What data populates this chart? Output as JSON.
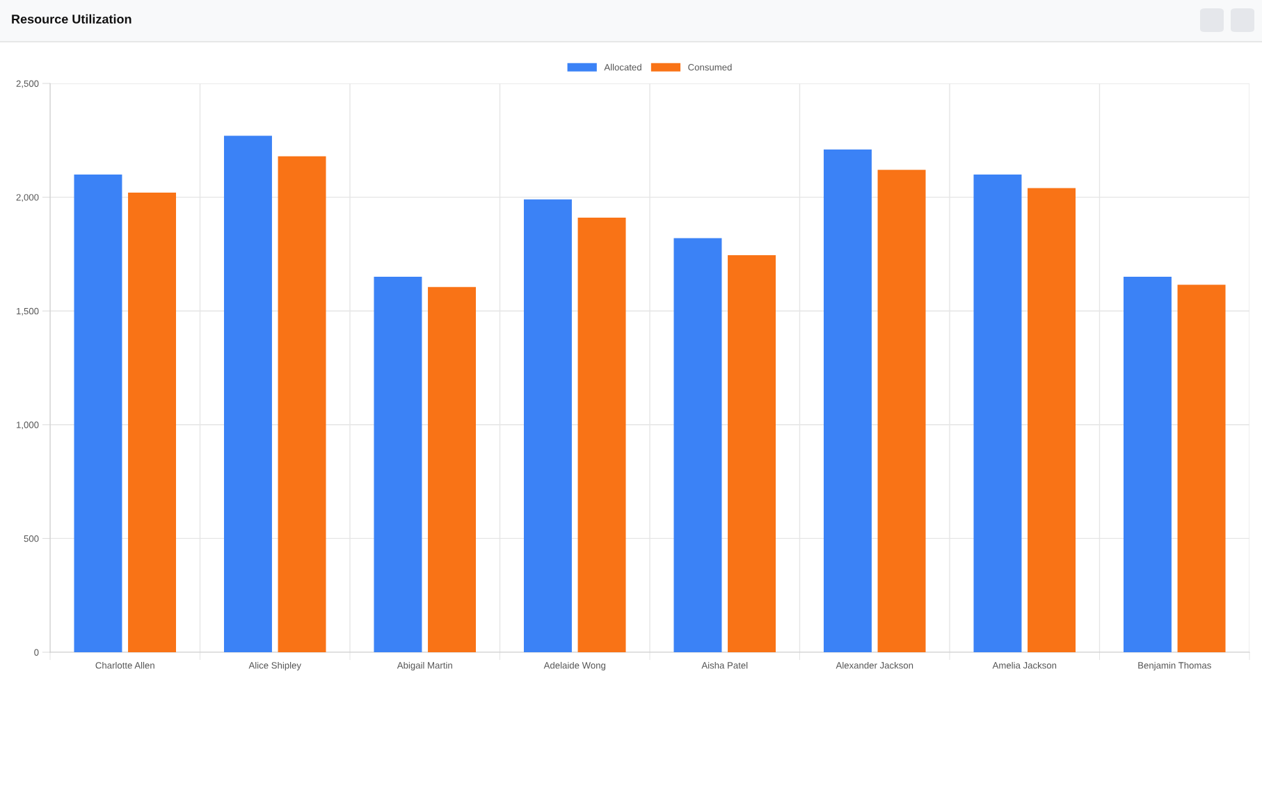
{
  "chart_data": {
    "type": "bar",
    "title": "Resource Utilization",
    "categories": [
      "Charlotte Allen",
      "Alice Shipley",
      "Abigail Martin",
      "Adelaide Wong",
      "Aisha Patel",
      "Alexander Jackson",
      "Amelia Jackson",
      "Benjamin Thomas"
    ],
    "series": [
      {
        "name": "Allocated",
        "color": "#3b82f6",
        "values": [
          2100,
          2270,
          1650,
          1990,
          1820,
          2210,
          2100,
          1650
        ]
      },
      {
        "name": "Consumed",
        "color": "#f97316",
        "values": [
          2020,
          2180,
          1605,
          1910,
          1745,
          2120,
          2040,
          1615
        ]
      }
    ],
    "ylim": [
      0,
      2500
    ],
    "yticks": [
      {
        "value": 0,
        "label": "0"
      },
      {
        "value": 500,
        "label": "500"
      },
      {
        "value": 1000,
        "label": "1,000"
      },
      {
        "value": 1500,
        "label": "1,500"
      },
      {
        "value": 2000,
        "label": "2,000"
      },
      {
        "value": 2500,
        "label": "2,500"
      }
    ],
    "grid": true,
    "legend": "top"
  }
}
